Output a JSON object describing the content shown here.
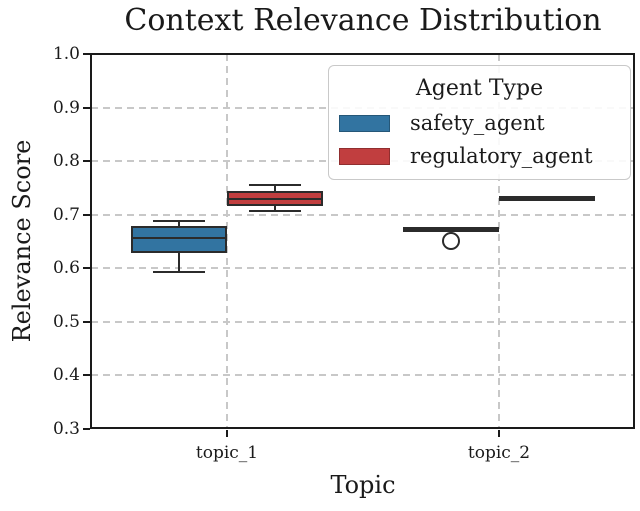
{
  "title": "Context Relevance Distribution",
  "chart_data": {
    "type": "box",
    "title": "Context Relevance Distribution",
    "xlabel": "Topic",
    "ylabel": "Relevance Score",
    "categories": [
      "topic_1",
      "topic_2"
    ],
    "ylim": [
      0.3,
      1.0
    ],
    "yticks": [
      0.3,
      0.4,
      0.5,
      0.6,
      0.7,
      0.8,
      0.9,
      1.0
    ],
    "grid": "dashed, both axes, axis-below",
    "legend": {
      "title": "Agent Type",
      "position": "upper right"
    },
    "edge_color": "#2b2b2b",
    "grid_color": "#c8c8c8",
    "series": [
      {
        "name": "safety_agent",
        "color": "#3274a1",
        "boxes": [
          {
            "category": "topic_1",
            "whislo": 0.593,
            "q1": 0.632,
            "med": 0.657,
            "q3": 0.675,
            "whishi": 0.688,
            "fliers": []
          },
          {
            "category": "topic_2",
            "whislo": 0.67,
            "q1": 0.672,
            "med": 0.673,
            "q3": 0.674,
            "whishi": 0.676,
            "fliers": [
              0.65
            ]
          }
        ]
      },
      {
        "name": "regulatory_agent",
        "color": "#c13e3f",
        "boxes": [
          {
            "category": "topic_1",
            "whislo": 0.707,
            "q1": 0.72,
            "med": 0.729,
            "q3": 0.74,
            "whishi": 0.755,
            "fliers": []
          },
          {
            "category": "topic_2",
            "whislo": 0.727,
            "q1": 0.729,
            "med": 0.73,
            "q3": 0.731,
            "whishi": 0.733,
            "fliers": []
          }
        ]
      }
    ]
  }
}
